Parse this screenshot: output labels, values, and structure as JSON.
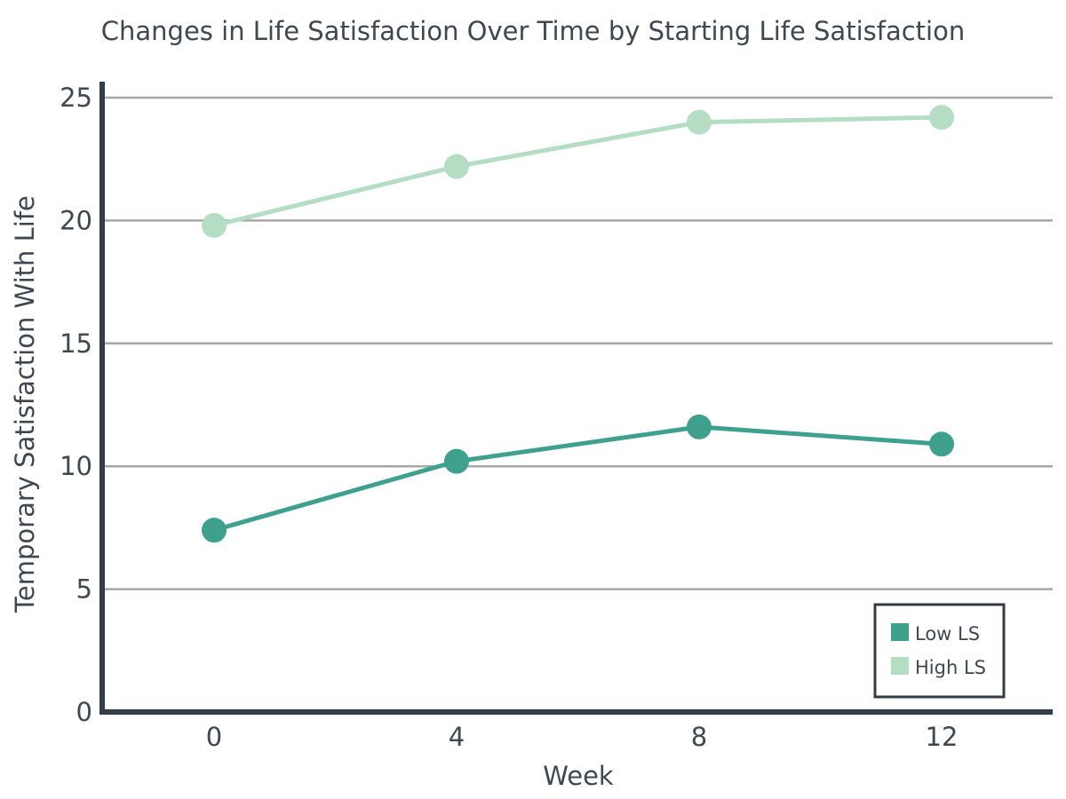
{
  "chart_data": {
    "type": "line",
    "title": "Changes in Life Satisfaction Over Time by Starting Life Satisfaction",
    "xlabel": "Week",
    "ylabel": "Temporary Satisfaction With Life",
    "x": [
      0,
      4,
      8,
      12
    ],
    "x_tick_labels": [
      "0",
      "4",
      "8",
      "12"
    ],
    "y_ticks": [
      0,
      5,
      10,
      15,
      20,
      25
    ],
    "y_tick_labels": [
      "0",
      "5",
      "10",
      "15",
      "20",
      "25"
    ],
    "ylim": [
      0,
      25
    ],
    "grid": true,
    "legend_position": "bottom-right",
    "series": [
      {
        "name": "Low LS",
        "color": "#3fa08e",
        "values": [
          7.4,
          10.2,
          11.6,
          10.9
        ]
      },
      {
        "name": "High LS",
        "color": "#b5ddc4",
        "values": [
          19.8,
          22.2,
          24.0,
          24.2
        ]
      }
    ]
  }
}
